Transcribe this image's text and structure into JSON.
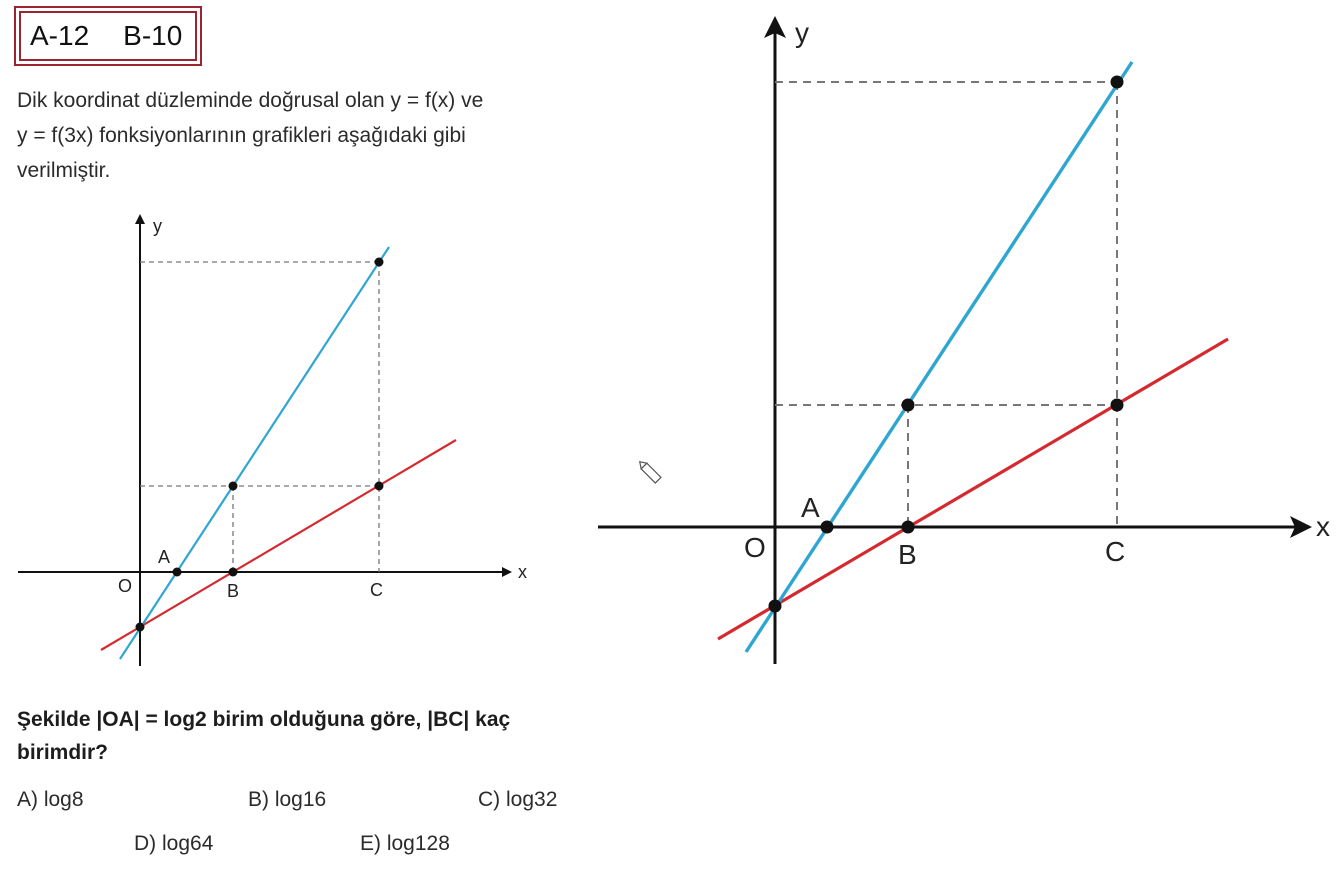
{
  "header": {
    "code_a": "A-12",
    "code_b": "B-10"
  },
  "problem": {
    "line1": "Dik koordinat düzleminde doğrusal olan y = f(x) ve",
    "line2": "y = f(3x) fonksiyonlarının grafikleri aşağıdaki gibi",
    "line3": "verilmiştir.",
    "question_line1": "Şekilde |OA| = log2 birim olduğuna göre, |BC| kaç",
    "question_line2": "birimdir?"
  },
  "options": {
    "a": "A) log8",
    "b": "B) log16",
    "c": "C) log32",
    "d": "D) log64",
    "e": "E) log128"
  },
  "figure": {
    "axis_x": "x",
    "axis_y": "y",
    "origin": "O",
    "point_a": "A",
    "point_b": "B",
    "point_c": "C",
    "steep_line_color": "#2ea6d2",
    "shallow_line_color": "#d42a2f"
  },
  "cursor_icon": "pencil-icon"
}
